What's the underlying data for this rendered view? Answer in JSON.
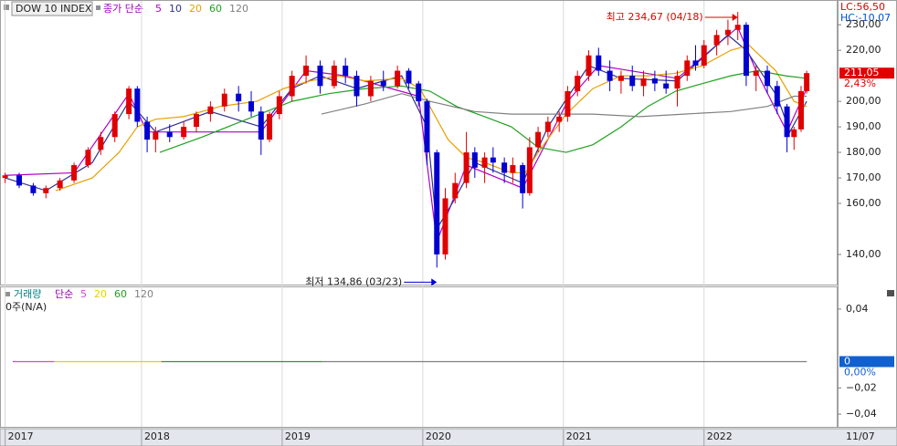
{
  "header": {
    "title": "DOW 10 INDEX",
    "lc": "LC:56,50",
    "hc": "HC:-10,07",
    "date": "11/07"
  },
  "chart_data": [
    {
      "type": "candlestick",
      "legend_label": "종가 단순",
      "x": [
        2017.03,
        2017.13,
        2017.23,
        2017.32,
        2017.42,
        2017.52,
        2017.62,
        2017.71,
        2017.81,
        2017.91,
        2017.97,
        2018.04,
        2018.1,
        2018.2,
        2018.3,
        2018.39,
        2018.49,
        2018.59,
        2018.69,
        2018.78,
        2018.85,
        2018.91,
        2018.98,
        2019.07,
        2019.17,
        2019.27,
        2019.37,
        2019.45,
        2019.53,
        2019.63,
        2019.72,
        2019.82,
        2019.9,
        2019.97,
        2020.03,
        2020.1,
        2020.16,
        2020.23,
        2020.31,
        2020.37,
        2020.44,
        2020.5,
        2020.58,
        2020.64,
        2020.71,
        2020.76,
        2020.82,
        2020.89,
        2020.97,
        2021.03,
        2021.1,
        2021.18,
        2021.25,
        2021.33,
        2021.41,
        2021.49,
        2021.57,
        2021.65,
        2021.73,
        2021.81,
        2021.88,
        2021.94,
        2022.0,
        2022.09,
        2022.17,
        2022.24,
        2022.3,
        2022.37,
        2022.45,
        2022.52,
        2022.59,
        2022.64,
        2022.69,
        2022.73
      ],
      "open": [
        170,
        171,
        167,
        164,
        166,
        169,
        175,
        181,
        186,
        195,
        205,
        192,
        185,
        188,
        186,
        190,
        195,
        198,
        203,
        200,
        196,
        185,
        195,
        202,
        210,
        214,
        206,
        214,
        210,
        202,
        208,
        206,
        212,
        207,
        200,
        180,
        140,
        162,
        168,
        180,
        174,
        178,
        176,
        172,
        175,
        164,
        182,
        188,
        192,
        194,
        204,
        210,
        218,
        212,
        208,
        210,
        206,
        209,
        207,
        205,
        210,
        216,
        214,
        222,
        226,
        228,
        230,
        210,
        212,
        206,
        198,
        186,
        189,
        204
      ],
      "high": [
        172,
        172,
        168,
        167,
        170,
        176,
        182,
        188,
        196,
        206,
        206,
        194,
        190,
        191,
        192,
        196,
        200,
        205,
        206,
        204,
        198,
        196,
        204,
        212,
        218,
        216,
        216,
        217,
        212,
        210,
        212,
        214,
        213,
        208,
        201,
        181,
        166,
        172,
        188,
        182,
        180,
        182,
        178,
        178,
        176,
        186,
        190,
        194,
        196,
        206,
        212,
        220,
        221,
        216,
        212,
        214,
        212,
        212,
        212,
        212,
        218,
        222,
        224,
        228,
        232,
        234.67,
        231,
        214,
        214,
        208,
        199,
        190,
        206,
        212
      ],
      "low": [
        168,
        166,
        163,
        162,
        165,
        168,
        174,
        179,
        184,
        193,
        190,
        180,
        180,
        184,
        185,
        188,
        192,
        196,
        196,
        194,
        179,
        184,
        193,
        200,
        207,
        203,
        205,
        207,
        198,
        200,
        204,
        205,
        205,
        198,
        175,
        134.86,
        138,
        160,
        166,
        170,
        168,
        172,
        168,
        168,
        158,
        163,
        180,
        186,
        188,
        192,
        202,
        208,
        210,
        204,
        203,
        204,
        202,
        204,
        203,
        198,
        208,
        212,
        213,
        218,
        222,
        224,
        206,
        204,
        203,
        195,
        180,
        181,
        188,
        203
      ],
      "close": [
        171,
        167,
        164,
        166,
        169,
        175,
        181,
        186,
        195,
        205,
        192,
        185,
        188,
        186,
        190,
        195,
        198,
        203,
        200,
        196,
        185,
        195,
        202,
        210,
        214,
        206,
        214,
        210,
        202,
        208,
        206,
        212,
        207,
        200,
        180,
        140,
        162,
        168,
        180,
        174,
        178,
        176,
        172,
        175,
        164,
        182,
        188,
        192,
        194,
        204,
        210,
        218,
        212,
        208,
        210,
        206,
        209,
        207,
        205,
        210,
        216,
        214,
        222,
        226,
        228,
        230,
        210,
        212,
        206,
        198,
        186,
        189,
        204,
        211.05
      ],
      "series": [
        {
          "name": "5",
          "color": "#b000c8",
          "x": [
            2017.03,
            2017.52,
            2017.91,
            2018.04,
            2018.85,
            2019.17,
            2019.45,
            2019.97,
            2020.1,
            2020.31,
            2020.71,
            2021.03,
            2021.25,
            2021.81,
            2022.24,
            2022.37,
            2022.59,
            2022.73
          ],
          "values": [
            171,
            172,
            203,
            188,
            188,
            212,
            210,
            202,
            145,
            175,
            166,
            200,
            214,
            209,
            229,
            212,
            188,
            205
          ]
        },
        {
          "name": "10",
          "color": "#303090",
          "x": [
            2017.03,
            2017.32,
            2017.65,
            2017.91,
            2018.1,
            2018.49,
            2018.85,
            2019.07,
            2019.27,
            2019.53,
            2019.85,
            2020.03,
            2020.1,
            2020.23,
            2020.37,
            2020.71,
            2020.89,
            2021.18,
            2021.41,
            2021.81,
            2022.17,
            2022.3,
            2022.52,
            2022.61,
            2022.73
          ],
          "values": [
            170,
            165,
            176,
            200,
            188,
            196,
            190,
            205,
            210,
            205,
            210,
            190,
            150,
            162,
            176,
            168,
            190,
            214,
            209,
            208,
            226,
            220,
            202,
            188,
            200
          ]
        },
        {
          "name": "20",
          "color": "#e8a000",
          "x": [
            2017.39,
            2017.65,
            2017.84,
            2017.97,
            2018.1,
            2018.3,
            2018.56,
            2018.82,
            2019.01,
            2019.2,
            2019.4,
            2019.59,
            2019.85,
            2019.98,
            2020.05,
            2020.18,
            2020.31,
            2020.44,
            2020.63,
            2020.73,
            2020.82,
            2021.02,
            2021.21,
            2021.41,
            2021.6,
            2021.8,
            2021.99,
            2022.19,
            2022.32,
            2022.51,
            2022.64,
            2022.73
          ],
          "values": [
            165,
            170,
            180,
            190,
            193,
            194,
            198,
            200,
            205,
            208,
            210,
            208,
            209,
            205,
            198,
            185,
            178,
            176,
            172,
            172,
            180,
            195,
            205,
            210,
            210,
            211,
            214,
            220,
            222,
            212,
            200,
            198
          ]
        },
        {
          "name": "60",
          "color": "#20a020",
          "x": [
            2018.13,
            2018.43,
            2018.75,
            2019.07,
            2019.33,
            2019.59,
            2019.85,
            2020.05,
            2020.24,
            2020.44,
            2020.63,
            2020.82,
            2021.02,
            2021.21,
            2021.41,
            2021.6,
            2021.8,
            2021.99,
            2022.19,
            2022.38,
            2022.58,
            2022.73
          ],
          "values": [
            180,
            186,
            193,
            200,
            203,
            205,
            206,
            204,
            198,
            194,
            190,
            182,
            180,
            183,
            190,
            198,
            204,
            207,
            210,
            212,
            210,
            209
          ]
        },
        {
          "name": "120",
          "color": "#808080",
          "x": [
            2019.28,
            2019.59,
            2019.85,
            2020.05,
            2020.37,
            2020.63,
            2020.89,
            2021.21,
            2021.54,
            2021.86,
            2022.19,
            2022.45,
            2022.64,
            2022.73
          ],
          "values": [
            195,
            199,
            203,
            200,
            196,
            195,
            195,
            195,
            194,
            195,
            196,
            198,
            202,
            202
          ]
        }
      ],
      "xlim": [
        2017,
        2022.95
      ],
      "xticks": [
        {
          "value": 2017.03,
          "label": "2017"
        },
        2018,
        2019,
        2020,
        2021,
        2022
      ],
      "ylim": [
        128.2,
        239.35
      ],
      "yticks": [
        {
          "value": 140,
          "label": "140,00"
        },
        {
          "value": 160,
          "label": "160,00"
        },
        {
          "value": 170,
          "label": "170,00"
        },
        {
          "value": 180,
          "label": "180,00"
        },
        {
          "value": 190,
          "label": "190,00"
        },
        {
          "value": 200,
          "label": "200,00"
        },
        {
          "value": 220,
          "label": "220,00"
        },
        {
          "value": 230,
          "label": "230,00"
        }
      ],
      "last_price": {
        "value": 211.05,
        "label": "211,05"
      },
      "change": "2,43%",
      "annotations": [
        {
          "text": "최고 234,67 (04/18)",
          "x": 2022.24,
          "value": 234.67,
          "color": "#e00000"
        },
        {
          "text": "최저 134,86 (03/23)",
          "x": 2020.1,
          "value": 134.86,
          "color": "#0000d0"
        }
      ]
    },
    {
      "type": "volume",
      "legend_label": "거래량",
      "legend_sub": "단순",
      "status": "0주(N/A)",
      "series": [
        {
          "name": "5",
          "color": "#e040e0",
          "x": [
            2017.09,
            2017.38
          ],
          "values": [
            0,
            0
          ]
        },
        {
          "name": "20",
          "color": "#e8d000",
          "x": [
            2017.38,
            2018.14
          ],
          "values": [
            0,
            0
          ]
        },
        {
          "name": "60",
          "color": "#20a020",
          "x": [
            2018.14,
            2019.28
          ],
          "values": [
            0,
            0
          ]
        },
        {
          "name": "120",
          "color": "#808080",
          "x": [
            2019.28,
            2022.73
          ],
          "values": [
            0,
            0
          ]
        }
      ],
      "ylim": [
        -0.0497,
        0.0566
      ],
      "yticks": [
        {
          "value": 0.04,
          "label": "0,04"
        },
        {
          "value": -0.02,
          "label": "−0,02"
        },
        {
          "value": -0.04,
          "label": "−0,04"
        }
      ],
      "last_value": 0,
      "change": "0,00%"
    }
  ]
}
